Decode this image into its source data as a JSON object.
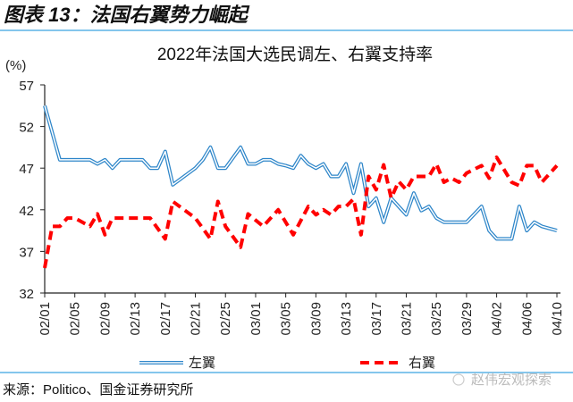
{
  "header": {
    "title": "图表 13：法国右翼势力崛起"
  },
  "footer": {
    "source": "来源：Politico、国金证券研究所",
    "watermark": "赵伟宏观探索"
  },
  "colors": {
    "accent_line": "#5BB4E5",
    "left_wing": "#2E86C9",
    "right_wing": "#FF0000"
  },
  "chart_data": {
    "type": "line",
    "title": "2022年法国大选民调左、右翼支持率",
    "ylabel": "(%)",
    "ylim": [
      32,
      57
    ],
    "yticks": [
      "32",
      "37",
      "42",
      "47",
      "52",
      "57"
    ],
    "xticks": [
      "02/01",
      "02/05",
      "02/09",
      "02/13",
      "02/17",
      "02/21",
      "02/25",
      "03/01",
      "03/05",
      "03/09",
      "03/13",
      "03/17",
      "03/21",
      "03/25",
      "03/29",
      "04/02",
      "04/06",
      "04/10"
    ],
    "xrange": [
      "02/01",
      "04/10"
    ],
    "legend_position": "bottom",
    "grid": false,
    "series": [
      {
        "name": "左翼",
        "style": "double-line",
        "points": [
          [
            "02/01",
            54.5
          ],
          [
            "02/03",
            48
          ],
          [
            "02/07",
            48
          ],
          [
            "02/08",
            47.5
          ],
          [
            "02/09",
            48
          ],
          [
            "02/10",
            47
          ],
          [
            "02/11",
            48
          ],
          [
            "02/14",
            48
          ],
          [
            "02/15",
            47
          ],
          [
            "02/16",
            47
          ],
          [
            "02/17",
            49
          ],
          [
            "02/18",
            45
          ],
          [
            "02/21",
            47
          ],
          [
            "02/22",
            48
          ],
          [
            "02/23",
            49.5
          ],
          [
            "02/24",
            47
          ],
          [
            "02/25",
            47
          ],
          [
            "02/27",
            49.5
          ],
          [
            "02/28",
            47.5
          ],
          [
            "03/01",
            47.5
          ],
          [
            "03/02",
            48
          ],
          [
            "03/03",
            48
          ],
          [
            "03/04",
            47.5
          ],
          [
            "03/05",
            47.3
          ],
          [
            "03/06",
            47
          ],
          [
            "03/07",
            48.5
          ],
          [
            "03/08",
            47.5
          ],
          [
            "03/09",
            47
          ],
          [
            "03/10",
            47.5
          ],
          [
            "03/11",
            46
          ],
          [
            "03/12",
            46
          ],
          [
            "03/13",
            47.5
          ],
          [
            "03/14",
            44
          ],
          [
            "03/15",
            47.5
          ],
          [
            "03/16",
            42.4
          ],
          [
            "03/17",
            43.4
          ],
          [
            "03/18",
            40.5
          ],
          [
            "03/19",
            43.4
          ],
          [
            "03/20",
            42.4
          ],
          [
            "03/21",
            41.4
          ],
          [
            "03/22",
            44
          ],
          [
            "03/23",
            41.9
          ],
          [
            "03/24",
            42.4
          ],
          [
            "03/25",
            41
          ],
          [
            "03/26",
            40.5
          ],
          [
            "03/29",
            40.5
          ],
          [
            "03/31",
            42.4
          ],
          [
            "04/01",
            39.5
          ],
          [
            "04/02",
            38.5
          ],
          [
            "04/04",
            38.5
          ],
          [
            "04/05",
            42.4
          ],
          [
            "04/06",
            39.5
          ],
          [
            "04/07",
            40.5
          ],
          [
            "04/08",
            40
          ],
          [
            "04/10",
            39.5
          ]
        ]
      },
      {
        "name": "右翼",
        "style": "dashed",
        "points": [
          [
            "02/01",
            35
          ],
          [
            "02/02",
            40
          ],
          [
            "02/03",
            40
          ],
          [
            "02/04",
            41
          ],
          [
            "02/05",
            41
          ],
          [
            "02/07",
            40
          ],
          [
            "02/08",
            41.5
          ],
          [
            "02/09",
            39
          ],
          [
            "02/10",
            41
          ],
          [
            "02/15",
            41
          ],
          [
            "02/17",
            38.5
          ],
          [
            "02/18",
            43
          ],
          [
            "02/21",
            41
          ],
          [
            "02/23",
            38.5
          ],
          [
            "02/24",
            43
          ],
          [
            "02/25",
            40
          ],
          [
            "02/27",
            37.5
          ],
          [
            "02/28",
            41.5
          ],
          [
            "03/02",
            40
          ],
          [
            "03/04",
            42
          ],
          [
            "03/06",
            39
          ],
          [
            "03/08",
            42.4
          ],
          [
            "03/09",
            41.4
          ],
          [
            "03/10",
            42
          ],
          [
            "03/11",
            41.4
          ],
          [
            "03/12",
            42.4
          ],
          [
            "03/13",
            42.4
          ],
          [
            "03/14",
            43.3
          ],
          [
            "03/15",
            39
          ],
          [
            "03/16",
            46
          ],
          [
            "03/17",
            44.4
          ],
          [
            "03/18",
            47.4
          ],
          [
            "03/19",
            43.4
          ],
          [
            "03/20",
            45.4
          ],
          [
            "03/21",
            44.4
          ],
          [
            "03/22",
            46
          ],
          [
            "03/24",
            46
          ],
          [
            "03/25",
            47.5
          ],
          [
            "03/26",
            45.3
          ],
          [
            "03/27",
            45.8
          ],
          [
            "03/28",
            45.3
          ],
          [
            "03/29",
            46.4
          ],
          [
            "03/31",
            47.3
          ],
          [
            "04/01",
            45.8
          ],
          [
            "04/02",
            48.3
          ],
          [
            "04/04",
            45.3
          ],
          [
            "04/05",
            44.9
          ],
          [
            "04/06",
            47.3
          ],
          [
            "04/07",
            47.3
          ],
          [
            "04/08",
            45.3
          ],
          [
            "04/10",
            47.3
          ]
        ]
      }
    ]
  }
}
